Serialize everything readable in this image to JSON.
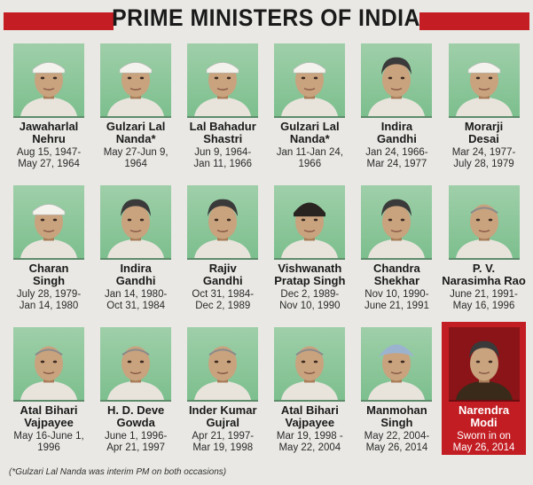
{
  "title": "PRIME MINISTERS OF INDIA",
  "footnote": "(*Gulzari Lal Nanda was interim PM on both occasions)",
  "colors": {
    "accent": "#c41e24",
    "photo_bg": "#8fc89c"
  },
  "ministers": [
    {
      "name": "Jawaharlal\nNehru",
      "term": "Aug 15, 1947-\nMay 27, 1964",
      "cap": "gandhi-cap"
    },
    {
      "name": "Gulzari Lal\nNanda*",
      "term": "May 27-Jun 9,\n1964",
      "cap": "gandhi-cap"
    },
    {
      "name": "Lal Bahadur\nShastri",
      "term": "Jun 9, 1964-\nJan 11, 1966",
      "cap": "gandhi-cap"
    },
    {
      "name": "Gulzari Lal\nNanda*",
      "term": "Jan 11-Jan 24,\n1966",
      "cap": "gandhi-cap"
    },
    {
      "name": "Indira\nGandhi",
      "term": "Jan 24, 1966-\nMar 24, 1977",
      "cap": "hair"
    },
    {
      "name": "Morarji\nDesai",
      "term": "Mar 24, 1977-\nJuly 28, 1979",
      "cap": "gandhi-cap"
    },
    {
      "name": "Charan\nSingh",
      "term": "July 28, 1979-\nJan 14, 1980",
      "cap": "gandhi-cap"
    },
    {
      "name": "Indira\nGandhi",
      "term": "Jan 14, 1980-\nOct 31, 1984",
      "cap": "hair"
    },
    {
      "name": "Rajiv\nGandhi",
      "term": "Oct 31, 1984-\nDec 2, 1989",
      "cap": "hair"
    },
    {
      "name": "Vishwanath\nPratap Singh",
      "term": "Dec 2, 1989-\nNov 10, 1990",
      "cap": "fur-cap"
    },
    {
      "name": "Chandra\nShekhar",
      "term": "Nov 10, 1990-\nJune 21, 1991",
      "cap": "hair"
    },
    {
      "name": "P. V.\nNarasimha Rao",
      "term": "June 21, 1991-\nMay 16, 1996",
      "cap": "bald"
    },
    {
      "name": "Atal Bihari\nVajpayee",
      "term": "May 16-June 1,\n1996",
      "cap": "bald"
    },
    {
      "name": "H. D. Deve\nGowda",
      "term": "June 1, 1996-\nApr 21, 1997",
      "cap": "bald"
    },
    {
      "name": "Inder Kumar\nGujral",
      "term": "Apr 21, 1997-\nMar 19, 1998",
      "cap": "bald"
    },
    {
      "name": "Atal Bihari\nVajpayee",
      "term": "Mar 19, 1998 -\nMay 22, 2004",
      "cap": "bald"
    },
    {
      "name": "Manmohan\nSingh",
      "term": "May 22, 2004-\nMay 26, 2014",
      "cap": "turban"
    },
    {
      "name": "Narendra\nModi",
      "term": "Sworn in on\nMay 26, 2014",
      "cap": "hair",
      "highlight": true
    }
  ]
}
